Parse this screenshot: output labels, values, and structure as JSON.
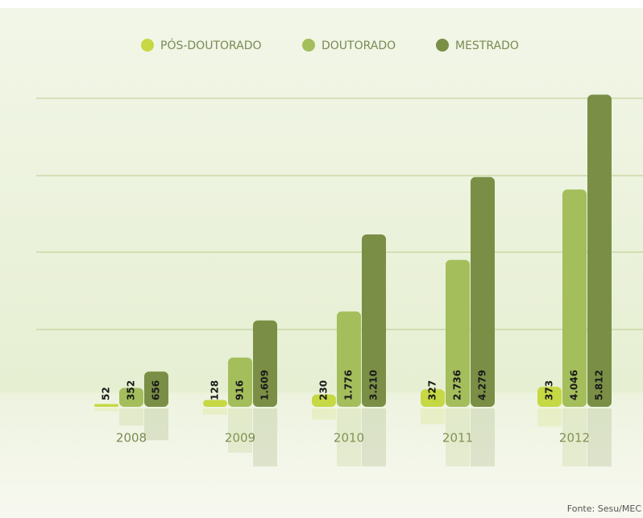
{
  "chart_data": {
    "type": "bar",
    "categories": [
      "2008",
      "2009",
      "2010",
      "2011",
      "2012"
    ],
    "series": [
      {
        "name": "PÓS-DOUTORADO",
        "color": "#c6d843",
        "values": [
          52,
          128,
          230,
          327,
          373
        ],
        "value_labels": [
          "52",
          "128",
          "230",
          "327",
          "373"
        ]
      },
      {
        "name": "DOUTORADO",
        "color": "#a4be5c",
        "values": [
          352,
          916,
          1776,
          2736,
          4046
        ],
        "value_labels": [
          "352",
          "916",
          "1.776",
          "2.736",
          "4.046"
        ]
      },
      {
        "name": "MESTRADO",
        "color": "#7a8f45",
        "values": [
          656,
          1609,
          3210,
          4279,
          5812
        ],
        "value_labels": [
          "656",
          "1.609",
          "3.210",
          "4.279",
          "5.812"
        ]
      }
    ],
    "ylim": [
      0,
      6000
    ],
    "source": "Fonte: Sesu/MEC"
  }
}
